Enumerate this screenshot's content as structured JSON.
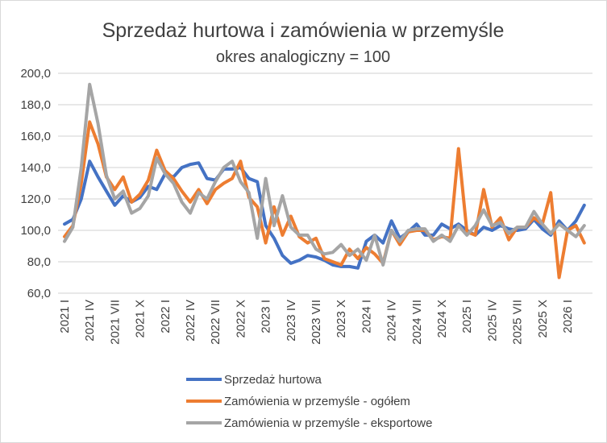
{
  "chart_data": {
    "type": "line",
    "title": "Sprzedaż  hurtowa i zamówienia w przemyśle",
    "subtitle": "okres analogiczny = 100",
    "xlabel": "",
    "ylabel": "",
    "ylim": [
      60,
      200
    ],
    "yticks": [
      "60,0",
      "80,0",
      "100,0",
      "120,0",
      "140,0",
      "160,0",
      "180,0",
      "200,0"
    ],
    "ytick_values": [
      60,
      80,
      100,
      120,
      140,
      160,
      180,
      200
    ],
    "grid": true,
    "legend_position": "bottom",
    "x_tick_labels": [
      "2021 I",
      "2021 IV",
      "2021 VII",
      "2021 X",
      "2022 I",
      "2022 IV",
      "2022 VII",
      "2022 X",
      "2023 I",
      "2023 IV",
      "2023 VII",
      "2023 X",
      "2024 I",
      "2024 IV",
      "2024 VII",
      "2024 X",
      "2025 I",
      "2025 IV",
      "2025 VII",
      "2025 X",
      "2026 I"
    ],
    "x_tick_every_months": 3,
    "x_start": "2021-01",
    "x_end": "2026-03",
    "series": [
      {
        "name": "Sprzedaż hurtowa",
        "color": "#4472c4",
        "values": [
          104,
          107,
          120,
          144,
          134,
          125,
          116,
          122,
          118,
          121,
          128,
          126,
          136,
          134,
          140,
          142,
          143,
          133,
          132,
          139,
          139,
          140,
          133,
          131,
          103,
          95,
          84,
          79,
          81,
          84,
          83,
          81,
          78,
          77,
          77,
          76,
          93,
          97,
          92,
          106,
          95,
          99,
          104,
          97,
          97,
          104,
          101,
          104,
          100,
          97,
          102,
          100,
          103,
          101,
          100,
          101,
          107,
          101,
          97,
          106,
          100,
          106,
          116
        ]
      },
      {
        "name": "Zamówienia w przemyśle - ogółem",
        "color": "#ed7d31",
        "values": [
          96,
          103,
          130,
          169,
          155,
          134,
          126,
          134,
          118,
          123,
          132,
          151,
          138,
          133,
          125,
          118,
          126,
          117,
          126,
          130,
          133,
          144,
          121,
          115,
          92,
          115,
          97,
          109,
          96,
          92,
          95,
          82,
          80,
          78,
          88,
          82,
          89,
          85,
          79,
          100,
          91,
          99,
          100,
          100,
          94,
          96,
          95,
          152,
          99,
          97,
          126,
          102,
          108,
          94,
          102,
          102,
          108,
          104,
          124,
          70,
          100,
          103,
          92
        ]
      },
      {
        "name": "Zamówienia w przemyśle - eksportowe",
        "color": "#a5a5a5",
        "values": [
          93,
          102,
          140,
          193,
          168,
          135,
          120,
          125,
          111,
          114,
          122,
          146,
          136,
          130,
          118,
          111,
          124,
          120,
          131,
          140,
          144,
          131,
          124,
          95,
          133,
          103,
          122,
          102,
          97,
          97,
          88,
          85,
          86,
          91,
          84,
          88,
          81,
          97,
          78,
          100,
          93,
          100,
          101,
          101,
          93,
          97,
          93,
          103,
          97,
          103,
          113,
          103,
          105,
          98,
          102,
          102,
          112,
          104,
          98,
          104,
          100,
          96,
          103
        ]
      }
    ]
  }
}
